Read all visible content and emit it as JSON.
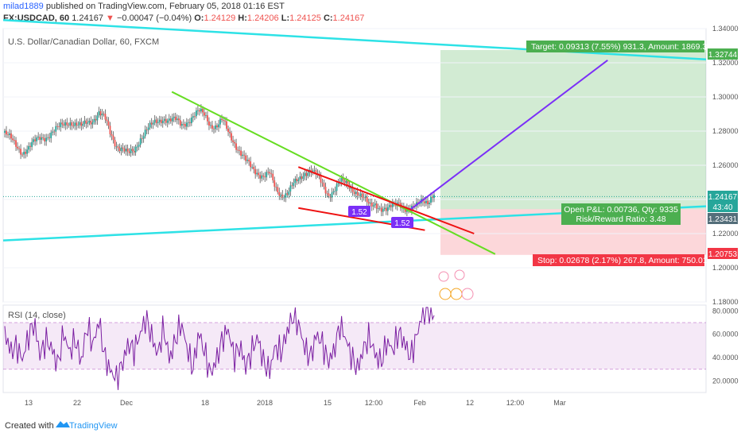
{
  "header": {
    "author": "milad1889",
    "published": "published on TradingView.com, February 05, 2018 01:16 EST",
    "symbol": "FX:USDCAD, 60",
    "last": "1.24167",
    "change_arrow": "▼",
    "change": "−0.00047 (−0.04%)",
    "o_label": "O:",
    "o": "1.24129",
    "h_label": "H:",
    "h": "1.24206",
    "l_label": "L:",
    "l": "1.24125",
    "c_label": "C:",
    "c": "1.24167"
  },
  "pane_title": "U.S. Dollar/Canadian Dollar, 60, FXCM",
  "rsi_title": "RSI (14, close)",
  "position": {
    "target": "Target: 0.09313 (7.55%) 931.3, Amount: 1869.3",
    "open_pl": "Open P&L: 0.00736, Qty: 9335",
    "risk_reward": "Risk/Reward Ratio: 3.48",
    "stop": "Stop: 0.02678 (2.17%) 267.8, Amount: 750.01"
  },
  "pattern_labels": [
    "1.52",
    "1.52"
  ],
  "price_tags": {
    "target": "1.32744",
    "last": "1.24167",
    "countdown": "43:40",
    "entry": "1.23431",
    "stop": "1.20753"
  },
  "footer": {
    "created": "Created with",
    "brand": "TradingView"
  },
  "colors": {
    "up": "#26a69a",
    "down": "#ef5350",
    "target": "#4caf50",
    "stop": "#f23645",
    "rsi": "#9c27b0",
    "trend_cyan": "#2de2e6",
    "trend_green": "#66dd22",
    "trend_red": "#ee1111",
    "trend_purple": "#7b2ff7"
  },
  "chart_data": {
    "type": "candlestick",
    "price_axis": {
      "min": 1.18,
      "max": 1.34,
      "ticks": [
        "1.34000",
        "1.32000",
        "1.30000",
        "1.28000",
        "1.26000",
        "1.24000",
        "1.22000",
        "1.20000",
        "1.18000"
      ],
      "tick_values": [
        1.34,
        1.32,
        1.3,
        1.28,
        1.26,
        1.24,
        1.22,
        1.2,
        1.18
      ]
    },
    "rsi_axis": {
      "min": 10,
      "max": 85,
      "ticks": [
        "80.0000",
        "60.0000",
        "40.0000",
        "20.0000"
      ],
      "tick_values": [
        80,
        60,
        40,
        20
      ],
      "bands": [
        70,
        30
      ]
    },
    "time_axis": {
      "labels": [
        "13",
        "22",
        "Dec",
        "18",
        "2018",
        "15",
        "12:00",
        "Feb",
        "12",
        "12:00",
        "Mar"
      ]
    },
    "price_path": [
      1.279,
      1.275,
      1.271,
      1.268,
      1.27,
      1.273,
      1.276,
      1.277,
      1.279,
      1.281,
      1.284,
      1.286,
      1.284,
      1.282,
      1.285,
      1.287,
      1.291,
      1.287,
      1.278,
      1.272,
      1.27,
      1.266,
      1.268,
      1.276,
      1.281,
      1.283,
      1.285,
      1.288,
      1.287,
      1.286,
      1.283,
      1.286,
      1.289,
      1.291,
      1.289,
      1.284,
      1.283,
      1.286,
      1.279,
      1.274,
      1.268,
      1.262,
      1.258,
      1.256,
      1.254,
      1.255,
      1.246,
      1.243,
      1.244,
      1.248,
      1.251,
      1.256,
      1.258,
      1.254,
      1.248,
      1.243,
      1.246,
      1.25,
      1.249,
      1.247,
      1.244,
      1.24,
      1.236,
      1.238,
      1.235,
      1.233,
      1.236,
      1.239,
      1.235,
      1.233,
      1.236,
      1.241,
      1.239,
      1.2417
    ],
    "rsi_path": [
      62,
      45,
      50,
      38,
      58,
      70,
      42,
      55,
      48,
      33,
      62,
      44,
      56,
      36,
      68,
      50,
      72,
      40,
      28,
      22,
      35,
      52,
      46,
      60,
      74,
      58,
      42,
      66,
      38,
      55,
      70,
      48,
      30,
      62,
      44,
      26,
      38,
      56,
      64,
      40,
      50,
      32,
      46,
      58,
      36,
      28,
      50,
      44,
      62,
      76,
      68,
      48,
      40,
      60,
      52,
      36,
      46,
      68,
      56,
      40,
      30,
      48,
      58,
      42,
      36,
      54,
      46,
      62,
      52,
      40,
      58,
      78,
      82,
      74
    ],
    "trendlines": [
      {
        "name": "cyan-upper",
        "from": [
          1.345,
          0
        ],
        "to": [
          1.322,
          1
        ]
      },
      {
        "name": "cyan-lower",
        "from": [
          1.216,
          0
        ],
        "to": [
          1.236,
          1
        ]
      },
      {
        "name": "green-wedge",
        "from": [
          1.303,
          0.24
        ],
        "to": [
          1.208,
          0.7
        ]
      },
      {
        "name": "red-upper",
        "from": [
          1.259,
          0.42
        ],
        "to": [
          1.22,
          0.67
        ]
      },
      {
        "name": "red-lower",
        "from": [
          1.235,
          0.42
        ],
        "to": [
          1.222,
          0.6
        ]
      },
      {
        "name": "purple-projection",
        "from": [
          1.2343,
          0.58
        ],
        "to": [
          1.3215,
          0.86
        ]
      }
    ],
    "position_tool": {
      "entry": 1.23431,
      "target": 1.32744,
      "stop": 1.20753
    }
  }
}
